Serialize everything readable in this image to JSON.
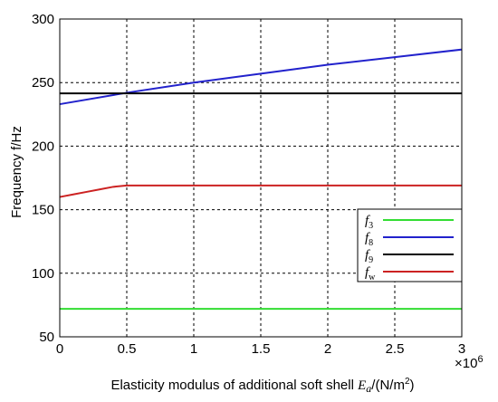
{
  "chart_data": {
    "type": "line",
    "xlabel": "Elasticity modulus of additional soft shell",
    "xlabel_symbol": "E",
    "xlabel_symbol_sub": "a",
    "xlabel_units": "/(N/m",
    "xlabel_units_sup": "2",
    "xlabel_units_end": ")",
    "x_multiplier": "×10",
    "x_multiplier_exp": "6",
    "ylabel": "Frequency f/Hz",
    "xlim": [
      0,
      3
    ],
    "ylim": [
      50,
      300
    ],
    "xticks": [
      "0",
      "0.5",
      "1",
      "1.5",
      "2",
      "2.5",
      "3"
    ],
    "yticks": [
      "50",
      "100",
      "150",
      "200",
      "250",
      "300"
    ],
    "grid": true,
    "legend_position": "bottom-right",
    "series": [
      {
        "name": "f3",
        "name_main": "f",
        "name_sub": "3",
        "color": "#33dd33",
        "x": [
          0,
          3
        ],
        "y": [
          72,
          72
        ]
      },
      {
        "name": "f8",
        "name_main": "f",
        "name_sub": "8",
        "color": "#2222cc",
        "x": [
          0,
          0.5,
          1,
          1.5,
          2,
          2.5,
          3
        ],
        "y": [
          233,
          242,
          250,
          257,
          264,
          270,
          276
        ]
      },
      {
        "name": "f9",
        "name_main": "f",
        "name_sub": "9",
        "color": "#000000",
        "x": [
          0,
          3
        ],
        "y": [
          241.5,
          241.5
        ]
      },
      {
        "name": "fw",
        "name_main": "f",
        "name_sub": "w",
        "color": "#cc2222",
        "x": [
          0,
          0.1,
          0.2,
          0.3,
          0.4,
          0.5,
          3
        ],
        "y": [
          160,
          162,
          164,
          166,
          168,
          169,
          169
        ]
      }
    ]
  }
}
